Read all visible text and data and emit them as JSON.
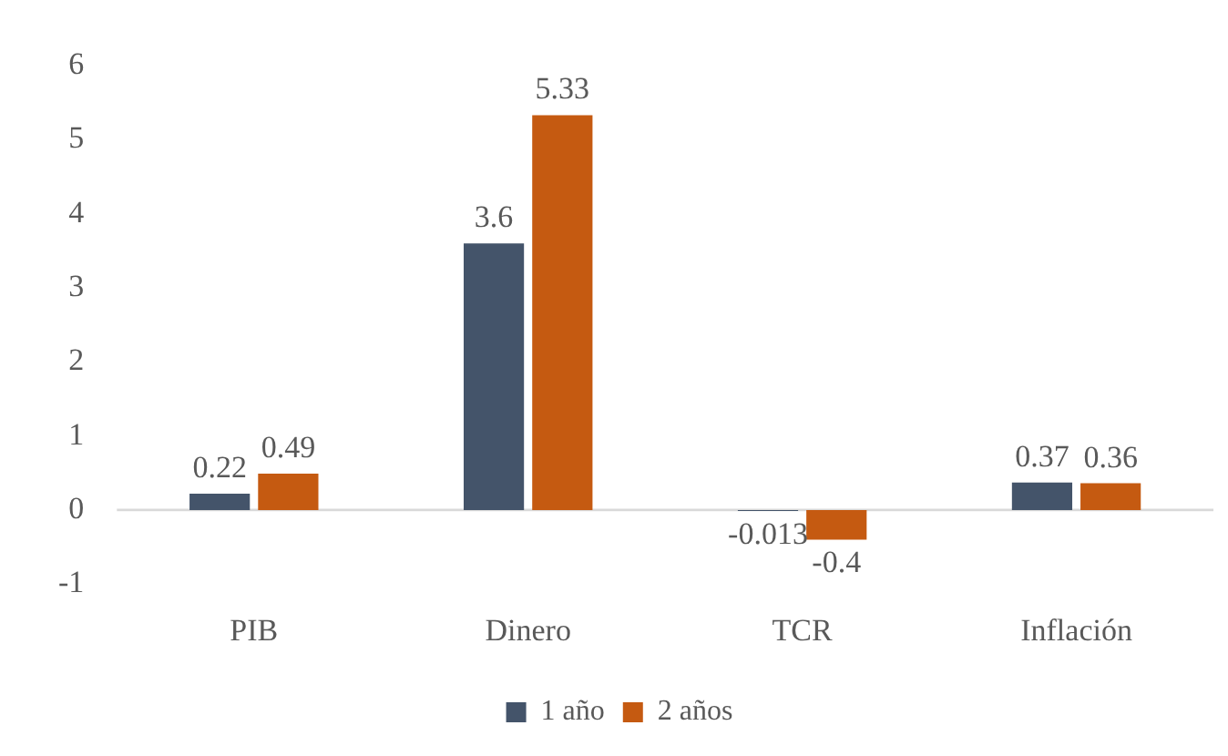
{
  "chart_data": {
    "type": "bar",
    "categories": [
      "PIB",
      "Dinero",
      "TCR",
      "Inflación"
    ],
    "series": [
      {
        "name": "1 año",
        "color": "#44546a",
        "values": [
          0.22,
          3.6,
          -0.013,
          0.37
        ]
      },
      {
        "name": "2 años",
        "color": "#c55a11",
        "values": [
          0.49,
          5.33,
          -0.4,
          0.36
        ]
      }
    ],
    "ylim": [
      -1,
      6
    ],
    "yticks": [
      -1,
      0,
      1,
      2,
      3,
      4,
      5,
      6
    ],
    "grid": false,
    "legend": "bottom",
    "data_labels": true,
    "ref_lines": [
      {
        "axis": "y",
        "value": 0,
        "color": "#d9d9d9"
      }
    ]
  }
}
